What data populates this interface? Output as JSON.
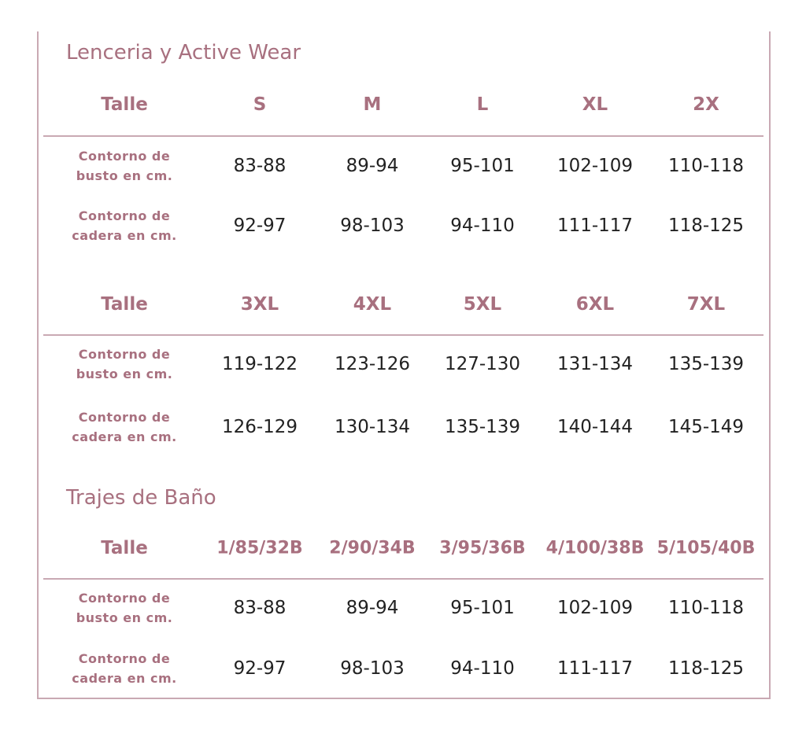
{
  "sections": [
    {
      "title": "Lenceria y Active Wear",
      "tables": [
        {
          "header": [
            "Talle",
            "S",
            "M",
            "L",
            "XL",
            "2X"
          ],
          "rows": [
            {
              "label": [
                "Contorno  de",
                "busto en cm."
              ],
              "values": [
                "83-88",
                "89-94",
                "95-101",
                "102-109",
                "110-118"
              ]
            },
            {
              "label": [
                "Contorno   de",
                "cadera en cm."
              ],
              "values": [
                "92-97",
                "98-103",
                "94-110",
                "111-117",
                "118-125"
              ]
            }
          ]
        },
        {
          "header": [
            "Talle",
            "3XL",
            "4XL",
            "5XL",
            "6XL",
            "7XL"
          ],
          "rows": [
            {
              "label": [
                "Contorno  de",
                "busto en cm."
              ],
              "values": [
                "119-122",
                "123-126",
                "127-130",
                "131-134",
                "135-139"
              ]
            },
            {
              "label": [
                "Contorno   de",
                "cadera en cm."
              ],
              "values": [
                "126-129",
                "130-134",
                "135-139",
                "140-144",
                "145-149"
              ]
            }
          ]
        }
      ]
    },
    {
      "title": "Trajes de Baño",
      "tables": [
        {
          "header": [
            "Talle",
            "1/85/32B",
            "2/90/34B",
            "3/95/36B",
            "4/100/38B",
            "5/105/40B"
          ],
          "rows": [
            {
              "label": [
                "Contorno  de",
                "busto en cm."
              ],
              "values": [
                "83-88",
                "89-94",
                "95-101",
                "102-109",
                "110-118"
              ]
            },
            {
              "label": [
                "Contorno   de",
                "cadera en cm."
              ],
              "values": [
                "92-97",
                "98-103",
                "94-110",
                "111-117",
                "118-125"
              ]
            }
          ]
        }
      ]
    }
  ],
  "colors": {
    "accent": "#a8707f",
    "rule": "#c9a9b3",
    "text": "#222222"
  }
}
